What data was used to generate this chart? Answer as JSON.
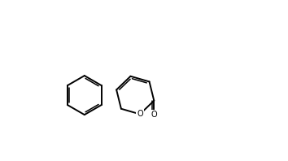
{
  "bg_color": "#ffffff",
  "line_color": "#000000",
  "lw": 1.4,
  "lw_inner": 1.1,
  "fs": 7.0,
  "xlim": [
    -2.3,
    3.5
  ],
  "ylim": [
    -1.7,
    1.6
  ]
}
